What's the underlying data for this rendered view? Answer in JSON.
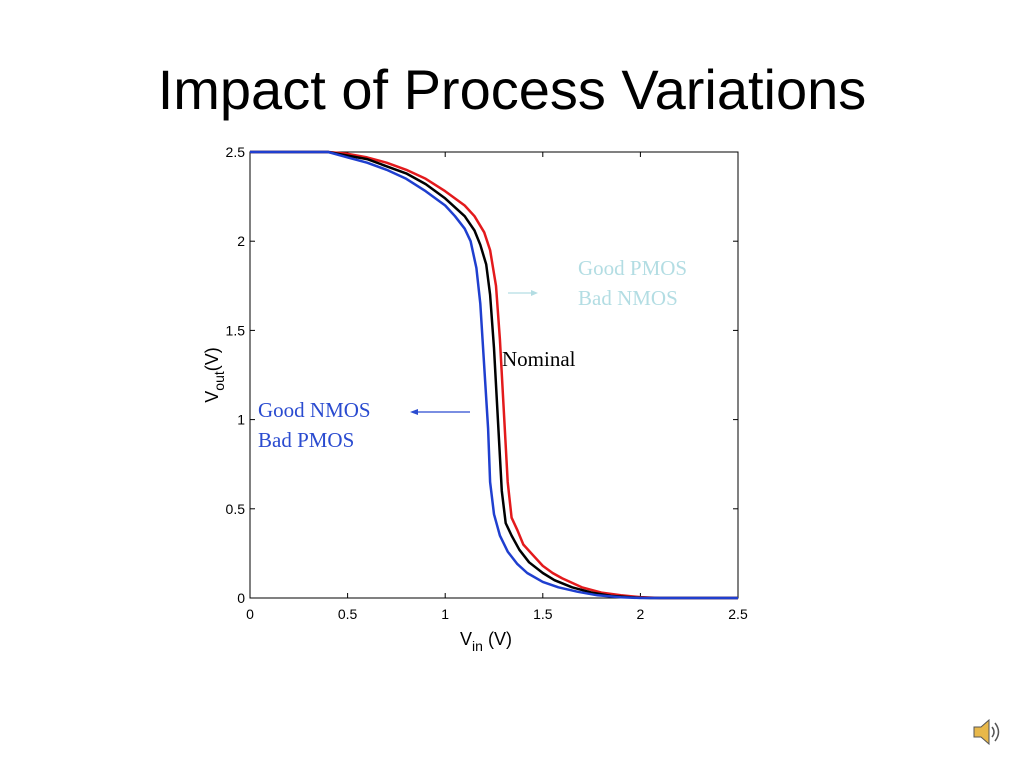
{
  "slide": {
    "title": "Impact of Process Variations"
  },
  "chart_data": {
    "type": "line",
    "xlabel_main": "V",
    "xlabel_sub": "in",
    "xlabel_unit": " (V)",
    "ylabel_main": "V",
    "ylabel_sub": "out",
    "ylabel_unit": "(V)",
    "xlim": [
      0,
      2.5
    ],
    "ylim": [
      0,
      2.5
    ],
    "x_ticks": [
      "0",
      "0.5",
      "1",
      "1.5",
      "2",
      "2.5"
    ],
    "y_ticks": [
      "0",
      "0.5",
      "1",
      "1.5",
      "2",
      "2.5"
    ],
    "grid": false,
    "series": [
      {
        "color": "#e31a1c",
        "points": [
          [
            0,
            2.5
          ],
          [
            0.4,
            2.5
          ],
          [
            0.5,
            2.49
          ],
          [
            0.6,
            2.47
          ],
          [
            0.7,
            2.44
          ],
          [
            0.8,
            2.4
          ],
          [
            0.9,
            2.35
          ],
          [
            1.0,
            2.28
          ],
          [
            1.1,
            2.2
          ],
          [
            1.15,
            2.14
          ],
          [
            1.2,
            2.05
          ],
          [
            1.23,
            1.95
          ],
          [
            1.26,
            1.75
          ],
          [
            1.28,
            1.45
          ],
          [
            1.3,
            1.05
          ],
          [
            1.32,
            0.65
          ],
          [
            1.34,
            0.45
          ],
          [
            1.37,
            0.38
          ],
          [
            1.4,
            0.3
          ],
          [
            1.45,
            0.24
          ],
          [
            1.5,
            0.18
          ],
          [
            1.55,
            0.14
          ],
          [
            1.6,
            0.11
          ],
          [
            1.7,
            0.06
          ],
          [
            1.8,
            0.03
          ],
          [
            1.9,
            0.015
          ],
          [
            2.0,
            0.005
          ],
          [
            2.1,
            0.0
          ],
          [
            2.5,
            0.0
          ]
        ]
      },
      {
        "color": "#000000",
        "points": [
          [
            0,
            2.5
          ],
          [
            0.4,
            2.5
          ],
          [
            0.5,
            2.48
          ],
          [
            0.6,
            2.46
          ],
          [
            0.7,
            2.42
          ],
          [
            0.8,
            2.38
          ],
          [
            0.9,
            2.32
          ],
          [
            1.0,
            2.24
          ],
          [
            1.1,
            2.14
          ],
          [
            1.15,
            2.06
          ],
          [
            1.18,
            1.98
          ],
          [
            1.21,
            1.87
          ],
          [
            1.23,
            1.7
          ],
          [
            1.25,
            1.4
          ],
          [
            1.27,
            1.0
          ],
          [
            1.29,
            0.6
          ],
          [
            1.31,
            0.42
          ],
          [
            1.34,
            0.35
          ],
          [
            1.38,
            0.27
          ],
          [
            1.43,
            0.2
          ],
          [
            1.5,
            0.14
          ],
          [
            1.56,
            0.1
          ],
          [
            1.65,
            0.06
          ],
          [
            1.75,
            0.03
          ],
          [
            1.85,
            0.012
          ],
          [
            1.95,
            0.004
          ],
          [
            2.05,
            0.0
          ],
          [
            2.5,
            0.0
          ]
        ]
      },
      {
        "color": "#1f3fcf",
        "points": [
          [
            0,
            2.5
          ],
          [
            0.4,
            2.5
          ],
          [
            0.5,
            2.47
          ],
          [
            0.6,
            2.44
          ],
          [
            0.7,
            2.4
          ],
          [
            0.8,
            2.35
          ],
          [
            0.9,
            2.28
          ],
          [
            1.0,
            2.2
          ],
          [
            1.05,
            2.14
          ],
          [
            1.1,
            2.07
          ],
          [
            1.13,
            2.0
          ],
          [
            1.16,
            1.85
          ],
          [
            1.18,
            1.65
          ],
          [
            1.2,
            1.3
          ],
          [
            1.22,
            0.95
          ],
          [
            1.23,
            0.65
          ],
          [
            1.25,
            0.47
          ],
          [
            1.28,
            0.35
          ],
          [
            1.32,
            0.26
          ],
          [
            1.37,
            0.19
          ],
          [
            1.42,
            0.14
          ],
          [
            1.5,
            0.09
          ],
          [
            1.58,
            0.06
          ],
          [
            1.68,
            0.035
          ],
          [
            1.78,
            0.015
          ],
          [
            1.9,
            0.004
          ],
          [
            2.0,
            0.0
          ],
          [
            2.5,
            0.0
          ]
        ]
      }
    ],
    "annotations": {
      "good_pmos": {
        "line1": "Good PMOS",
        "line2": "Bad NMOS",
        "color": "#b3dde3"
      },
      "nominal": {
        "text": "Nominal",
        "color": "#000000"
      },
      "good_nmos": {
        "line1": "Good NMOS",
        "line2": "Bad PMOS",
        "color": "#2a4bd0"
      }
    }
  },
  "icons": {
    "speaker": "speaker-icon"
  }
}
